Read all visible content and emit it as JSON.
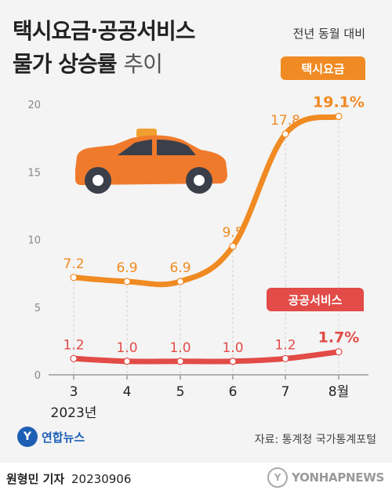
{
  "title_line1": "택시요금·공공서비스",
  "title_line2_bold": "물가 상승률",
  "title_line2_light": "추이",
  "subtitle": "전년 동월 대비",
  "colors": {
    "taxi": "#f08a22",
    "public": "#e24b47",
    "axis": "#999999",
    "tick": "#888888",
    "car_body": "#f07a2c",
    "car_window": "#3a3f4a"
  },
  "icons": {
    "car": "taxi-car-icon"
  },
  "chart_data": {
    "type": "line",
    "categories": [
      "3",
      "4",
      "5",
      "6",
      "7",
      "8월"
    ],
    "year_label": "2023년",
    "ylim": [
      0,
      20
    ],
    "yticks": [
      0,
      5,
      10,
      15,
      20
    ],
    "grid": false,
    "series": [
      {
        "name": "택시요금",
        "values": [
          7.2,
          6.9,
          6.9,
          9.5,
          17.8,
          19.1
        ],
        "labels": [
          "7.2",
          "6.9",
          "6.9",
          "9.5",
          "17.8",
          "19.1%"
        ]
      },
      {
        "name": "공공서비스",
        "values": [
          1.2,
          1.0,
          1.0,
          1.0,
          1.2,
          1.7
        ],
        "labels": [
          "1.2",
          "1.0",
          "1.0",
          "1.0",
          "1.2",
          "1.7%"
        ]
      }
    ]
  },
  "logo_text": "연합뉴스",
  "logo_mark": "Y",
  "source": "자료: 통계청 국가통계포털",
  "reporter": "원형민 기자",
  "date": "20230906",
  "watermark": "YONHAPNEWS",
  "watermark_mark": "Y"
}
